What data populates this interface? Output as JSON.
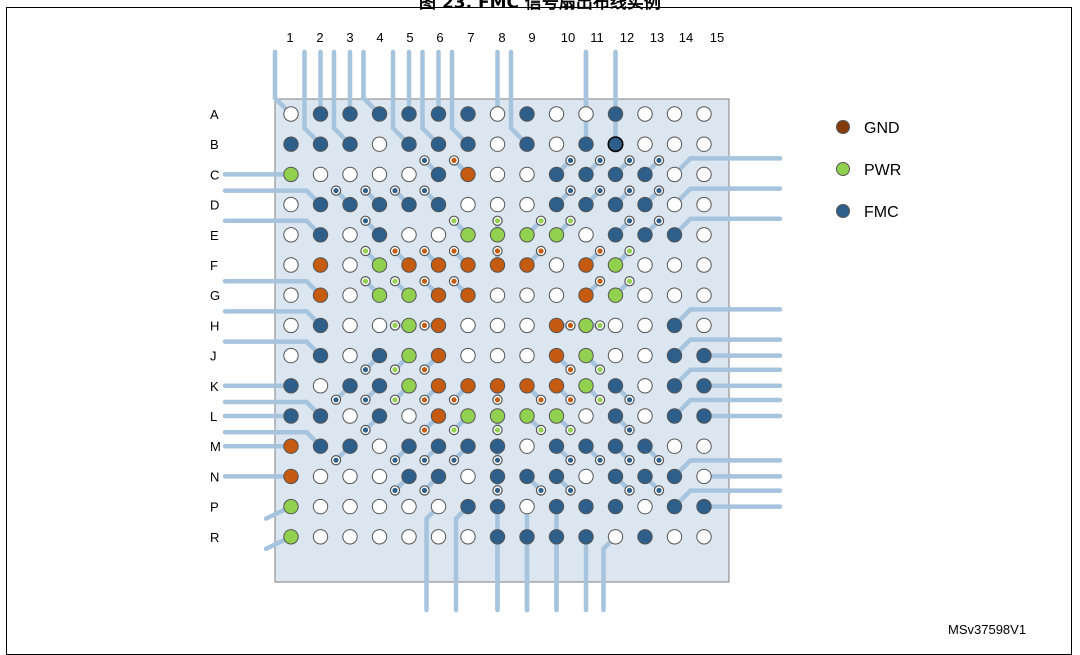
{
  "figure": {
    "title": "图 23. FMC 信号扇出布线实例",
    "code": "MSv37598V1"
  },
  "columns": [
    "1",
    "2",
    "3",
    "4",
    "5",
    "6",
    "7",
    "8",
    "9",
    "10",
    "11",
    "12",
    "13",
    "14",
    "15"
  ],
  "rows": [
    "A",
    "B",
    "C",
    "D",
    "E",
    "F",
    "G",
    "H",
    "J",
    "K",
    "L",
    "M",
    "N",
    "P",
    "R"
  ],
  "legend": [
    {
      "label": "GND",
      "type": "gnd"
    },
    {
      "label": "PWR",
      "type": "pwr"
    },
    {
      "label": "FMC",
      "type": "fmc"
    }
  ],
  "colors": {
    "gnd": "#C55A11",
    "pwr": "#92D050",
    "fmc": "#2E5F8A",
    "trace": "#A6C4DE",
    "board": "#DCE6F0",
    "empty": "#FFFFFF"
  },
  "balls": {
    "A": "-ffffff-f--f---",
    "B": "fff-fff-f-fh---",
    "C": "p----fg--ffff--",
    "D": "-fffff---ffff--",
    "E": "-f-f--pppp-fff-",
    "F": "-g-pggggg-gp---",
    "G": "-g-ppgg---gp---",
    "H": "-f--pg---gp--f-",
    "J": "-f-fpg---gp--ff",
    "K": "f-ffpgggggpf-ff",
    "L": "ff-f-gpppp-f-ff",
    "M": "gff-ffff-ffff--",
    "N": "g---ff-fff-fff-",
    "P": "p-----ff-fff-ff",
    "R": "p------ffff-f--"
  }
}
